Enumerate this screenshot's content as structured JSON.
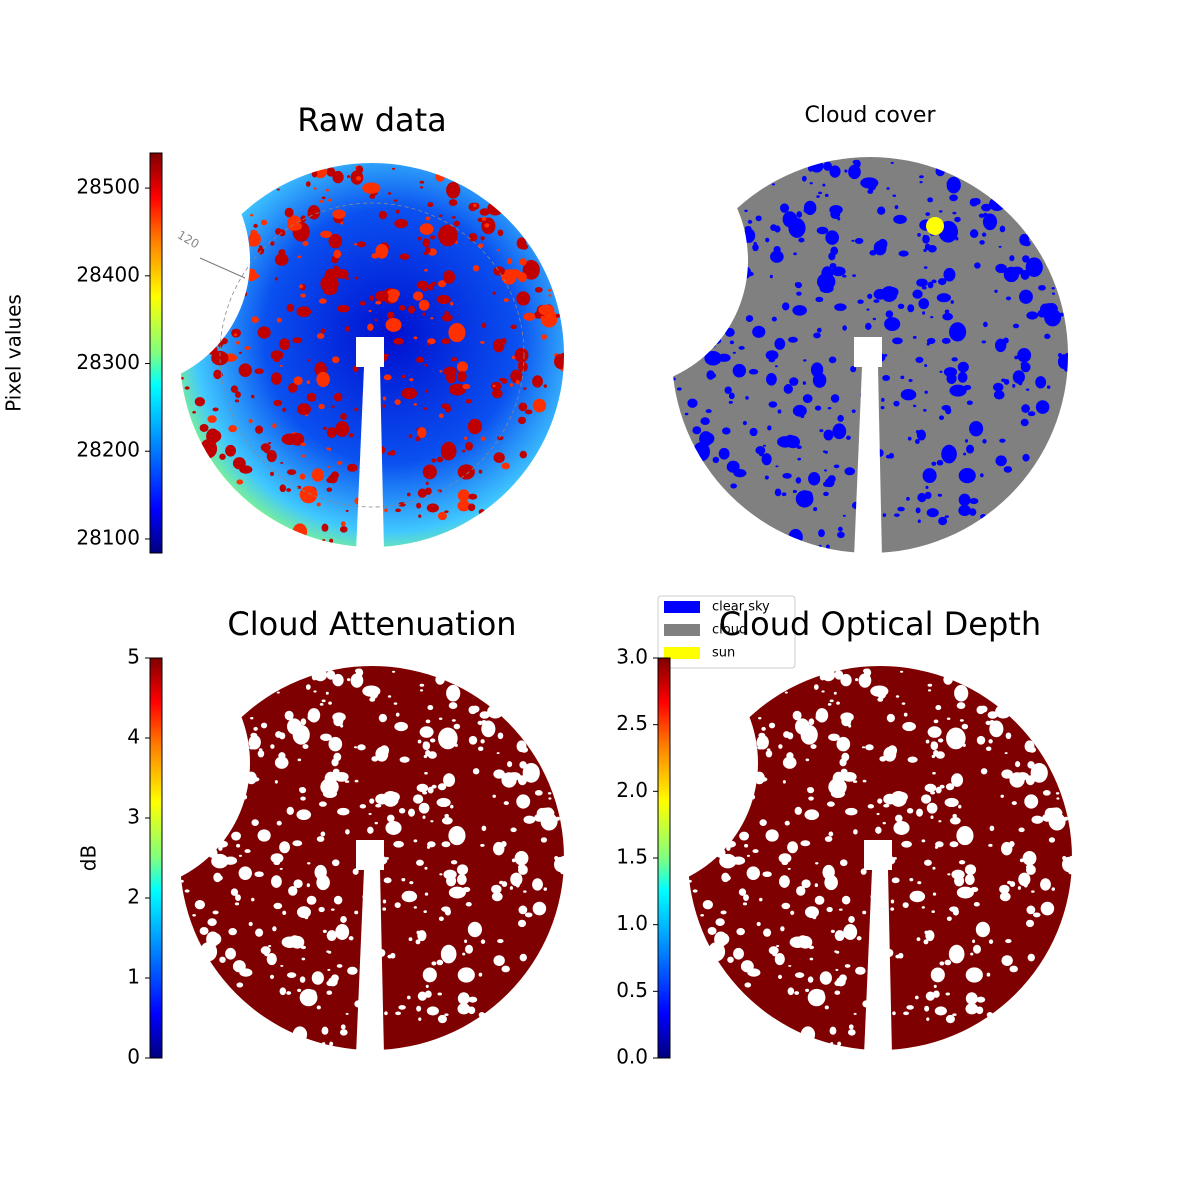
{
  "chart_data": [
    {
      "type": "image",
      "title": "Raw data",
      "colormap": "jet",
      "annotations": [
        "120"
      ],
      "colorbar": {
        "label": "Pixel values",
        "lim": [
          28084,
          28540
        ],
        "ticks": [
          28100,
          28200,
          28300,
          28400,
          28500
        ]
      }
    },
    {
      "type": "image",
      "title": "Cloud cover",
      "legend": [
        {
          "name": "clear sky",
          "color": "#0000ff"
        },
        {
          "name": "cloud",
          "color": "#808080"
        },
        {
          "name": "sun",
          "color": "#ffff00"
        }
      ]
    },
    {
      "type": "image",
      "title": "Cloud Attenuation",
      "colormap": "jet",
      "colorbar": {
        "label": "dB",
        "lim": [
          0,
          5
        ],
        "ticks": [
          0,
          1,
          2,
          3,
          4,
          5
        ]
      }
    },
    {
      "type": "image",
      "title": "Cloud Optical Depth",
      "colormap": "jet",
      "colorbar": {
        "lim": [
          0,
          3
        ],
        "ticks": [
          {
            "value": 0,
            "label": "0.0"
          },
          {
            "value": 0.5,
            "label": "0.5"
          },
          {
            "value": 1,
            "label": "1.0"
          },
          {
            "value": 1.5,
            "label": "1.5"
          },
          {
            "value": 2,
            "label": "2.0"
          },
          {
            "value": 2.5,
            "label": "2.5"
          },
          {
            "value": 3,
            "label": "3.0"
          }
        ]
      }
    }
  ]
}
